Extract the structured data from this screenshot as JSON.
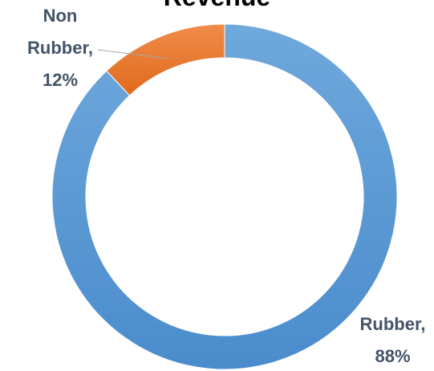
{
  "chart_data": {
    "type": "doughnut",
    "title": "Revenue",
    "categories": [
      "Rubber",
      "Non Rubber"
    ],
    "values": [
      88,
      12
    ],
    "value_labels": [
      "Rubber, 88%",
      "Non Rubber, 12%"
    ],
    "colors": [
      "#5b9bd5",
      "#ed7d31"
    ]
  }
}
